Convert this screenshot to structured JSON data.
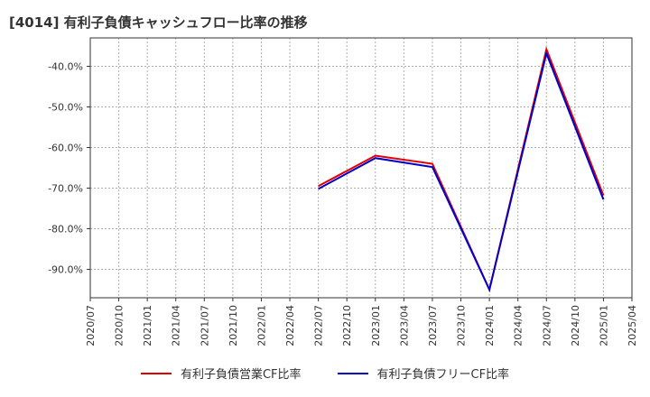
{
  "chart_data": {
    "type": "line",
    "title": "[4014]  有利子負債キャッシュフロー比率の推移",
    "xlabel": "",
    "ylabel": "",
    "x_ticks": [
      "2020/07",
      "2020/10",
      "2021/01",
      "2021/04",
      "2021/07",
      "2021/10",
      "2022/01",
      "2022/04",
      "2022/07",
      "2022/10",
      "2023/01",
      "2023/04",
      "2023/07",
      "2023/10",
      "2024/01",
      "2024/04",
      "2024/07",
      "2024/10",
      "2025/01",
      "2025/04"
    ],
    "y_ticks": [
      -40,
      -50,
      -60,
      -70,
      -80,
      -90
    ],
    "y_tick_labels": [
      "-40.0%",
      "-50.0%",
      "-60.0%",
      "-70.0%",
      "-80.0%",
      "-90.0%"
    ],
    "ylim": [
      -97,
      -33
    ],
    "grid": true,
    "legend_position": "bottom",
    "series": [
      {
        "name": "有利子負債営業CF比率",
        "color": "#e00000",
        "points": [
          [
            "2022/07",
            -69.5
          ],
          [
            "2023/01",
            -62.0
          ],
          [
            "2023/07",
            -64.0
          ],
          [
            "2024/01",
            -95.0
          ],
          [
            "2024/07",
            -35.8
          ],
          [
            "2025/01",
            -71.8
          ]
        ]
      },
      {
        "name": "有利子負債フリーCF比率",
        "color": "#0000cc",
        "points": [
          [
            "2022/07",
            -70.2
          ],
          [
            "2023/01",
            -62.6
          ],
          [
            "2023/07",
            -64.8
          ],
          [
            "2024/01",
            -95.0
          ],
          [
            "2024/07",
            -36.8
          ],
          [
            "2025/01",
            -72.8
          ]
        ]
      }
    ]
  }
}
